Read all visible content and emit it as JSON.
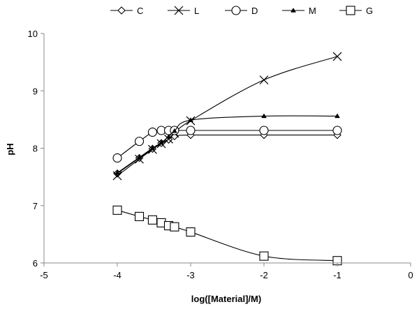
{
  "chart_data": {
    "type": "line",
    "title": "",
    "xlabel": "log([Material]/M)",
    "ylabel": "pH",
    "xlim": [
      -5,
      0
    ],
    "ylim": [
      6,
      10
    ],
    "xticks": [
      -5,
      -4,
      -3,
      -2,
      -1,
      0
    ],
    "yticks": [
      6,
      7,
      8,
      9,
      10
    ],
    "x_tick_labels": [
      "-5",
      "-4",
      "-3",
      "-2",
      "-1",
      "0"
    ],
    "y_tick_labels": [
      "6",
      "7",
      "8",
      "9",
      "10"
    ],
    "grid": false,
    "legend_position": "top",
    "series": [
      {
        "name": "C",
        "marker": "diamond",
        "x": [
          -4,
          -3.7,
          -3.52,
          -3.4,
          -3.3,
          -3.22,
          -3,
          -2,
          -1
        ],
        "y": [
          7.56,
          7.83,
          7.99,
          8.09,
          8.15,
          8.21,
          8.23,
          8.23,
          8.23
        ]
      },
      {
        "name": "L",
        "marker": "x",
        "x": [
          -4,
          -3.7,
          -3.52,
          -3.4,
          -3.3,
          -3.22,
          -3,
          -2,
          -1
        ],
        "y": [
          7.52,
          7.81,
          7.98,
          8.08,
          8.16,
          8.26,
          8.48,
          9.19,
          9.6
        ]
      },
      {
        "name": "D",
        "marker": "circle",
        "x": [
          -4,
          -3.7,
          -3.52,
          -3.4,
          -3.3,
          -3.22,
          -3,
          -2,
          -1
        ],
        "y": [
          7.83,
          8.12,
          8.28,
          8.31,
          8.31,
          8.31,
          8.31,
          8.31,
          8.31
        ]
      },
      {
        "name": "M",
        "marker": "triangle",
        "x": [
          -4,
          -3.7,
          -3.52,
          -3.4,
          -3.3,
          -3.22,
          -3,
          -2,
          -1
        ],
        "y": [
          7.57,
          7.84,
          8.0,
          8.1,
          8.2,
          8.3,
          8.49,
          8.56,
          8.56
        ]
      },
      {
        "name": "G",
        "marker": "square",
        "x": [
          -4,
          -3.7,
          -3.52,
          -3.4,
          -3.3,
          -3.22,
          -3,
          -2,
          -1
        ],
        "y": [
          6.92,
          6.81,
          6.75,
          6.7,
          6.65,
          6.63,
          6.54,
          6.12,
          6.04
        ]
      }
    ]
  }
}
